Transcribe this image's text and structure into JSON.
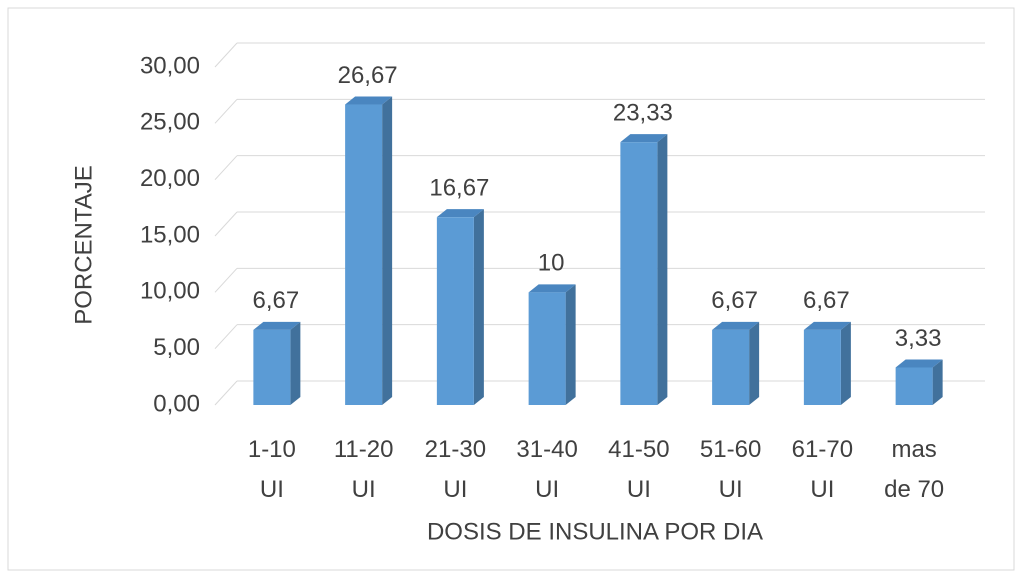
{
  "chart_data": {
    "type": "bar3d",
    "categories": [
      "1-10 UI",
      "11-20 UI",
      "21-30 UI",
      "31-40 UI",
      "41-50 UI",
      "51-60 UI",
      "61-70 UI",
      "mas de 70"
    ],
    "values": [
      6.67,
      26.67,
      16.67,
      10,
      23.33,
      6.67,
      6.67,
      3.33
    ],
    "value_labels": [
      "6,67",
      "26,67",
      "16,67",
      "10",
      "23,33",
      "6,67",
      "6,67",
      "3,33"
    ],
    "color": "#5b9bd5",
    "ylim": [
      0,
      30
    ],
    "yticks": [
      {
        "value": 0,
        "label": "0,00"
      },
      {
        "value": 5,
        "label": "5,00"
      },
      {
        "value": 10,
        "label": "10,00"
      },
      {
        "value": 15,
        "label": "15,00"
      },
      {
        "value": 20,
        "label": "20,00"
      },
      {
        "value": 25,
        "label": "25,00"
      },
      {
        "value": 30,
        "label": "30,00"
      }
    ],
    "xlabel": "DOSIS DE INSULINA POR DIA",
    "ylabel": "PORCENTAJE",
    "grid": true
  }
}
